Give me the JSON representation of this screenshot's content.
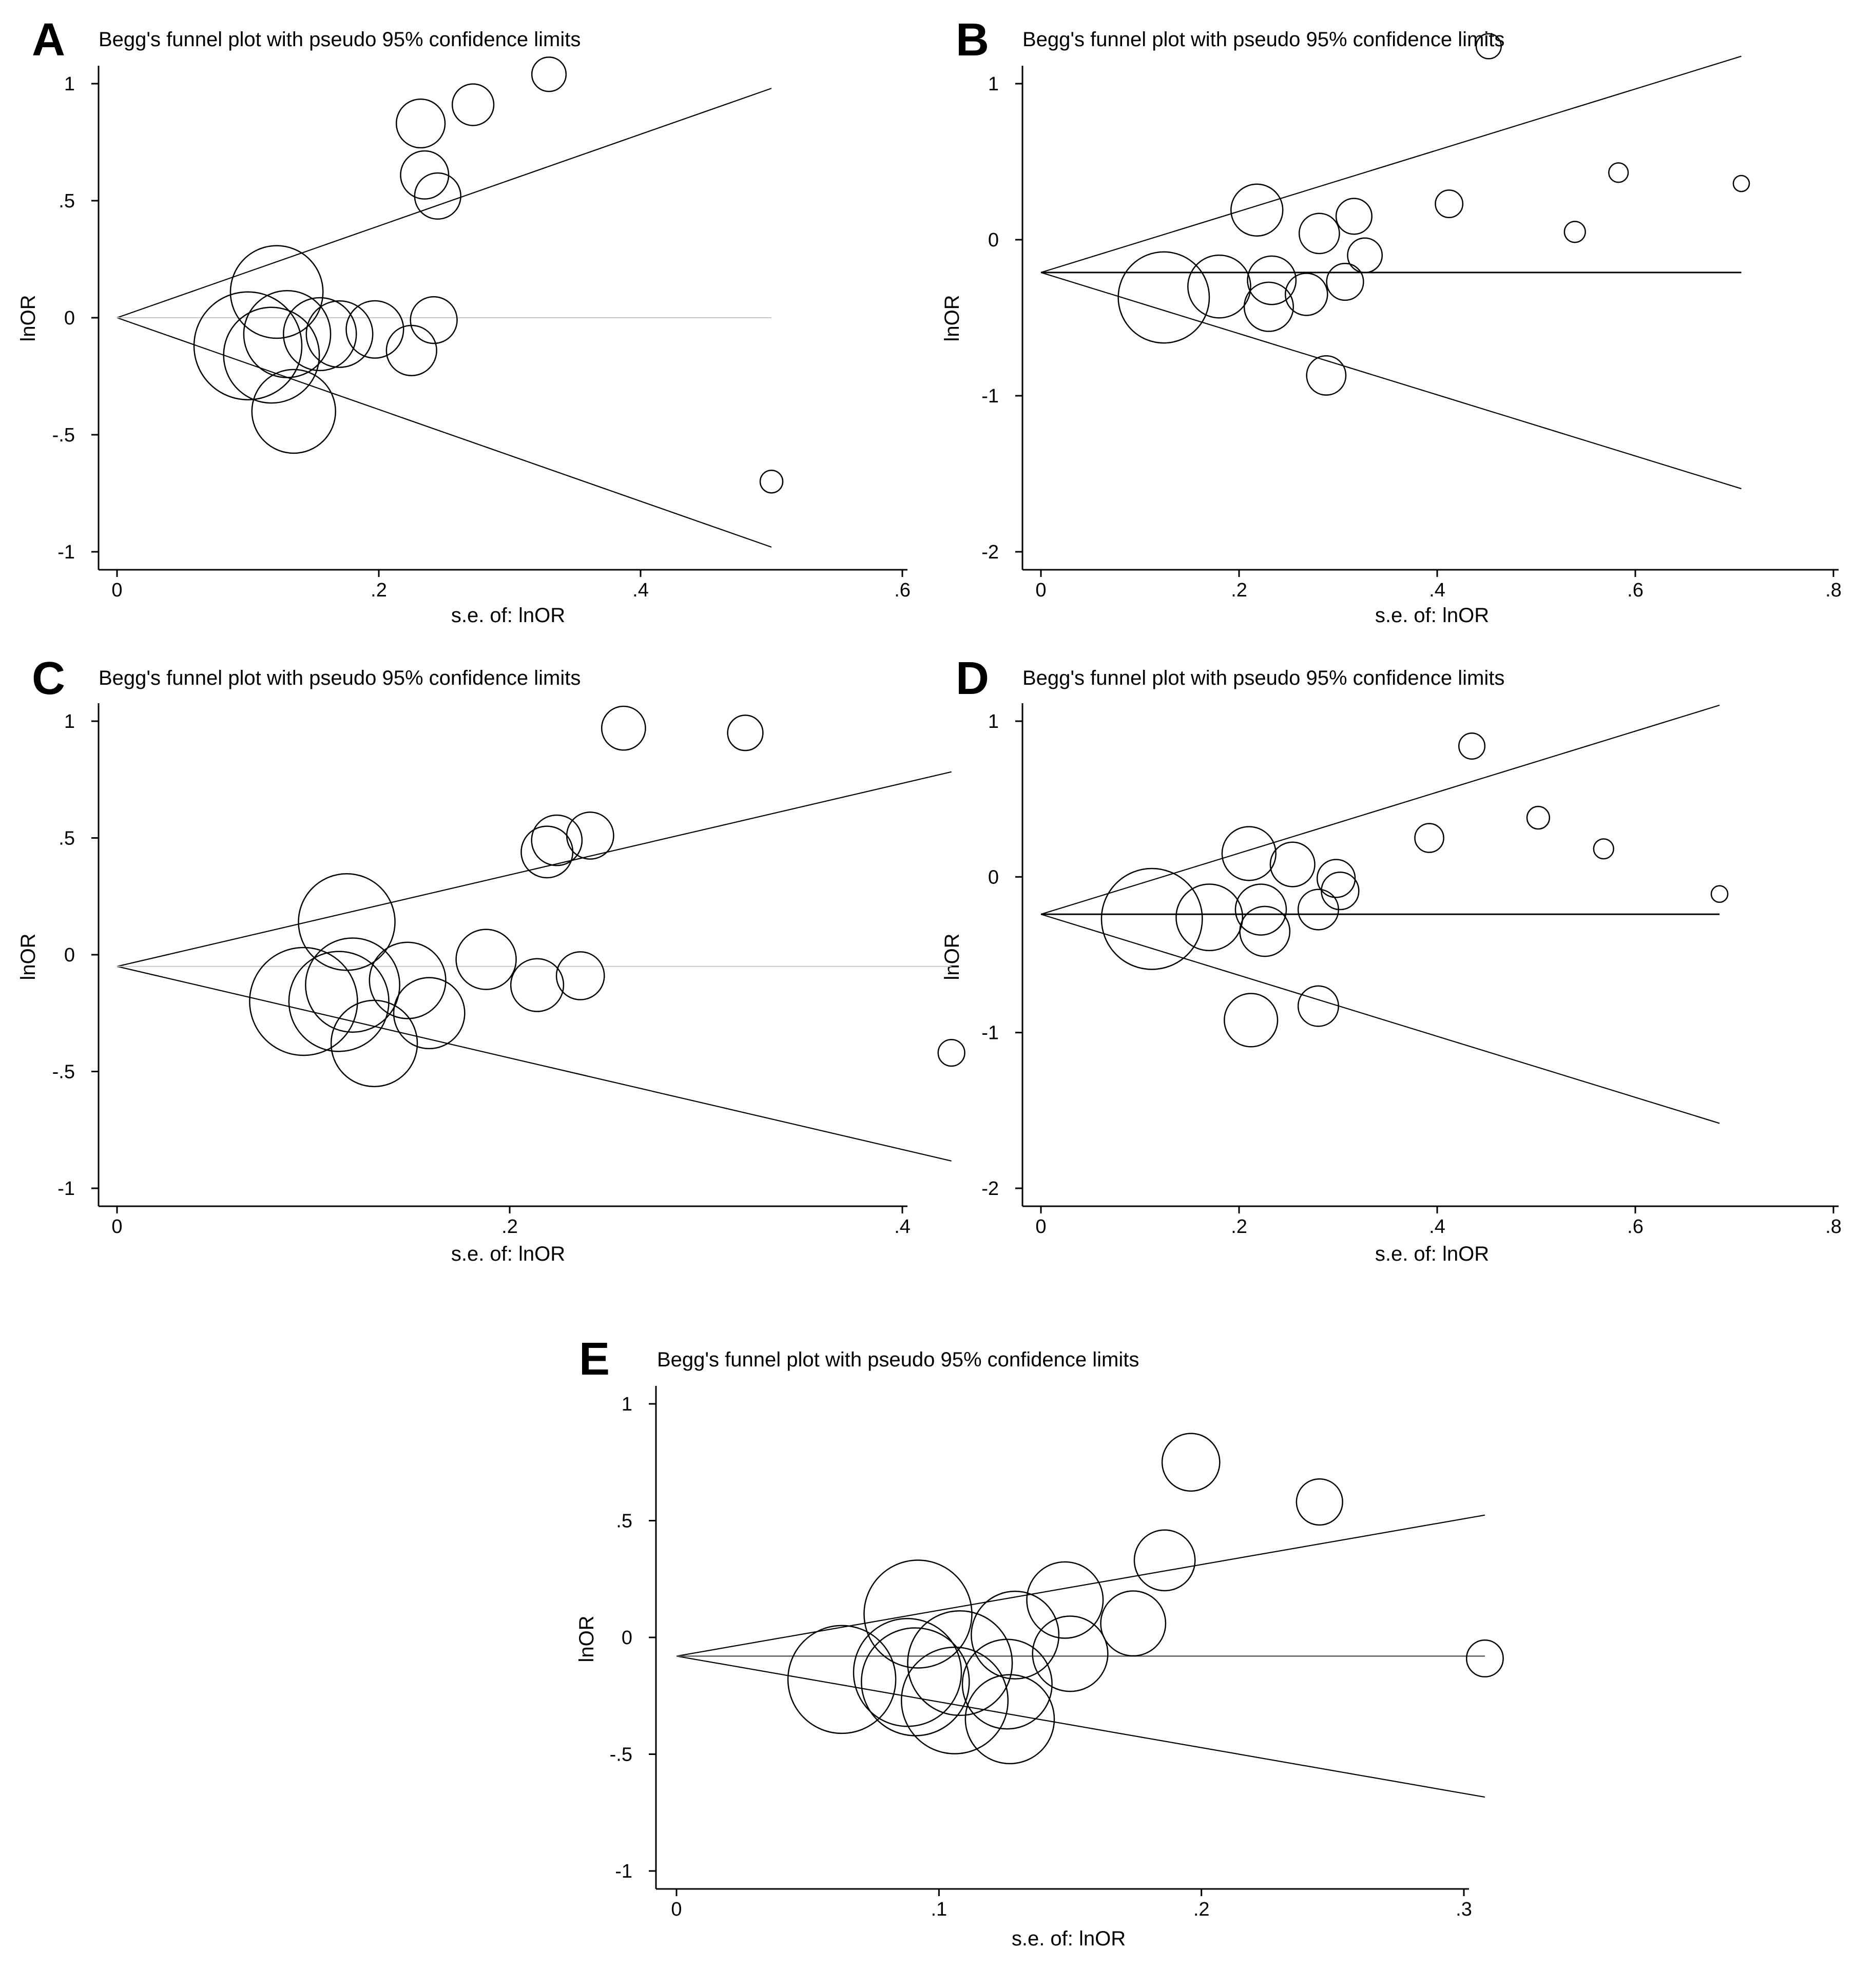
{
  "chart_data": [
    {
      "panel": "A",
      "type": "scatter",
      "title": "Begg's funnel plot with pseudo 95% confidence limits",
      "xlabel": "s.e. of: lnOR",
      "ylabel": "lnOR",
      "xlim": [
        0,
        0.6
      ],
      "ylim": [
        -1,
        1
      ],
      "xticks": [
        {
          "v": 0,
          "label": "0"
        },
        {
          "v": 0.2,
          "label": ".2"
        },
        {
          "v": 0.4,
          "label": ".4"
        },
        {
          "v": 0.6,
          "label": ".6"
        }
      ],
      "yticks": [
        {
          "v": 1,
          "label": "1"
        },
        {
          "v": 0.5,
          "label": ".5"
        },
        {
          "v": 0,
          "label": "0"
        },
        {
          "v": -0.5,
          "label": "-.5"
        },
        {
          "v": -1,
          "label": "-1"
        }
      ],
      "pooled": 0,
      "funnel_xmax": 0.5,
      "center_line": "light",
      "points": [
        {
          "x": 0.33,
          "y": 1.04
        },
        {
          "x": 0.272,
          "y": 0.91
        },
        {
          "x": 0.232,
          "y": 0.83
        },
        {
          "x": 0.235,
          "y": 0.61
        },
        {
          "x": 0.245,
          "y": 0.52
        },
        {
          "x": 0.122,
          "y": 0.11
        },
        {
          "x": 0.1,
          "y": -0.12
        },
        {
          "x": 0.118,
          "y": -0.16
        },
        {
          "x": 0.13,
          "y": -0.07
        },
        {
          "x": 0.155,
          "y": -0.07
        },
        {
          "x": 0.17,
          "y": -0.07
        },
        {
          "x": 0.197,
          "y": -0.05
        },
        {
          "x": 0.242,
          "y": -0.01
        },
        {
          "x": 0.225,
          "y": -0.14
        },
        {
          "x": 0.135,
          "y": -0.4
        },
        {
          "x": 0.5,
          "y": -0.7
        }
      ]
    },
    {
      "panel": "B",
      "type": "scatter",
      "title": "Begg's funnel plot with pseudo 95% confidence limits",
      "xlabel": "s.e. of: lnOR",
      "ylabel": "lnOR",
      "xlim": [
        0,
        0.8
      ],
      "ylim": [
        -2,
        1
      ],
      "xticks": [
        {
          "v": 0,
          "label": "0"
        },
        {
          "v": 0.2,
          "label": ".2"
        },
        {
          "v": 0.4,
          "label": ".4"
        },
        {
          "v": 0.6,
          "label": ".6"
        },
        {
          "v": 0.8,
          "label": ".8"
        }
      ],
      "yticks": [
        {
          "v": 1,
          "label": "1"
        },
        {
          "v": 0,
          "label": "0"
        },
        {
          "v": -1,
          "label": "-1"
        },
        {
          "v": -2,
          "label": "-2"
        }
      ],
      "pooled": -0.21,
      "funnel_xmax": 0.707,
      "center_line": "dark",
      "points": [
        {
          "x": 0.452,
          "y": 1.24
        },
        {
          "x": 0.707,
          "y": 0.36
        },
        {
          "x": 0.583,
          "y": 0.43
        },
        {
          "x": 0.412,
          "y": 0.23
        },
        {
          "x": 0.539,
          "y": 0.05
        },
        {
          "x": 0.218,
          "y": 0.19
        },
        {
          "x": 0.316,
          "y": 0.15
        },
        {
          "x": 0.281,
          "y": 0.04
        },
        {
          "x": 0.327,
          "y": -0.1
        },
        {
          "x": 0.124,
          "y": -0.37
        },
        {
          "x": 0.18,
          "y": -0.3
        },
        {
          "x": 0.233,
          "y": -0.26
        },
        {
          "x": 0.307,
          "y": -0.27
        },
        {
          "x": 0.268,
          "y": -0.35
        },
        {
          "x": 0.23,
          "y": -0.43
        },
        {
          "x": 0.288,
          "y": -0.87
        }
      ]
    },
    {
      "panel": "C",
      "type": "scatter",
      "title": "Begg's funnel plot with pseudo 95% confidence limits",
      "xlabel": "s.e. of: lnOR",
      "ylabel": "lnOR",
      "xlim": [
        0,
        0.4
      ],
      "ylim": [
        -1,
        1
      ],
      "xticks": [
        {
          "v": 0,
          "label": "0"
        },
        {
          "v": 0.2,
          "label": ".2"
        },
        {
          "v": 0.4,
          "label": ".4"
        }
      ],
      "yticks": [
        {
          "v": 1,
          "label": "1"
        },
        {
          "v": 0.5,
          "label": ".5"
        },
        {
          "v": 0,
          "label": "0"
        },
        {
          "v": -0.5,
          "label": "-.5"
        },
        {
          "v": -1,
          "label": "-1"
        }
      ],
      "pooled": -0.05,
      "funnel_xmax": 0.425,
      "center_line": "light",
      "points": [
        {
          "x": 0.258,
          "y": 0.97
        },
        {
          "x": 0.32,
          "y": 0.95
        },
        {
          "x": 0.241,
          "y": 0.51
        },
        {
          "x": 0.224,
          "y": 0.49
        },
        {
          "x": 0.219,
          "y": 0.44
        },
        {
          "x": 0.117,
          "y": 0.14
        },
        {
          "x": 0.188,
          "y": -0.02
        },
        {
          "x": 0.148,
          "y": -0.11
        },
        {
          "x": 0.12,
          "y": -0.13
        },
        {
          "x": 0.095,
          "y": -0.2
        },
        {
          "x": 0.113,
          "y": -0.2
        },
        {
          "x": 0.159,
          "y": -0.25
        },
        {
          "x": 0.131,
          "y": -0.38
        },
        {
          "x": 0.214,
          "y": -0.13
        },
        {
          "x": 0.236,
          "y": -0.09
        },
        {
          "x": 0.425,
          "y": -0.42
        }
      ]
    },
    {
      "panel": "D",
      "type": "scatter",
      "title": "Begg's funnel plot with pseudo 95% confidence limits",
      "xlabel": "s.e. of: lnOR",
      "ylabel": "lnOR",
      "xlim": [
        0,
        0.8
      ],
      "ylim": [
        -2,
        1
      ],
      "xticks": [
        {
          "v": 0,
          "label": "0"
        },
        {
          "v": 0.2,
          "label": ".2"
        },
        {
          "v": 0.4,
          "label": ".4"
        },
        {
          "v": 0.6,
          "label": ".6"
        },
        {
          "v": 0.8,
          "label": ".8"
        }
      ],
      "yticks": [
        {
          "v": 1,
          "label": "1"
        },
        {
          "v": 0,
          "label": "0"
        },
        {
          "v": -1,
          "label": "-1"
        },
        {
          "v": -2,
          "label": "-2"
        }
      ],
      "pooled": -0.24,
      "funnel_xmax": 0.685,
      "center_line": "dark",
      "points": [
        {
          "x": 0.435,
          "y": 0.84
        },
        {
          "x": 0.502,
          "y": 0.38
        },
        {
          "x": 0.392,
          "y": 0.25
        },
        {
          "x": 0.568,
          "y": 0.18
        },
        {
          "x": 0.21,
          "y": 0.15
        },
        {
          "x": 0.254,
          "y": 0.08
        },
        {
          "x": 0.298,
          "y": -0.01
        },
        {
          "x": 0.302,
          "y": -0.09
        },
        {
          "x": 0.685,
          "y": -0.11
        },
        {
          "x": 0.222,
          "y": -0.21
        },
        {
          "x": 0.28,
          "y": -0.21
        },
        {
          "x": 0.112,
          "y": -0.27
        },
        {
          "x": 0.17,
          "y": -0.26
        },
        {
          "x": 0.226,
          "y": -0.35
        },
        {
          "x": 0.28,
          "y": -0.83
        },
        {
          "x": 0.212,
          "y": -0.92
        }
      ]
    },
    {
      "panel": "E",
      "type": "scatter",
      "title": "Begg's funnel plot with pseudo 95% confidence limits",
      "xlabel": "s.e. of: lnOR",
      "ylabel": "lnOR",
      "xlim": [
        0,
        0.3
      ],
      "ylim": [
        -1,
        1
      ],
      "xticks": [
        {
          "v": 0,
          "label": "0"
        },
        {
          "v": 0.1,
          "label": ".1"
        },
        {
          "v": 0.2,
          "label": ".2"
        },
        {
          "v": 0.3,
          "label": ".3"
        }
      ],
      "yticks": [
        {
          "v": 1,
          "label": "1"
        },
        {
          "v": 0.5,
          "label": ".5"
        },
        {
          "v": 0,
          "label": "0"
        },
        {
          "v": -0.5,
          "label": "-.5"
        },
        {
          "v": -1,
          "label": "-1"
        }
      ],
      "pooled": -0.08,
      "funnel_xmax": 0.308,
      "center_line": "medium",
      "points": [
        {
          "x": 0.196,
          "y": 0.75
        },
        {
          "x": 0.245,
          "y": 0.58
        },
        {
          "x": 0.186,
          "y": 0.33
        },
        {
          "x": 0.148,
          "y": 0.16
        },
        {
          "x": 0.092,
          "y": 0.1
        },
        {
          "x": 0.174,
          "y": 0.06
        },
        {
          "x": 0.129,
          "y": 0.01
        },
        {
          "x": 0.15,
          "y": -0.07
        },
        {
          "x": 0.108,
          "y": -0.11
        },
        {
          "x": 0.088,
          "y": -0.15
        },
        {
          "x": 0.063,
          "y": -0.18
        },
        {
          "x": 0.091,
          "y": -0.19
        },
        {
          "x": 0.126,
          "y": -0.2
        },
        {
          "x": 0.106,
          "y": -0.27
        },
        {
          "x": 0.127,
          "y": -0.35
        },
        {
          "x": 0.308,
          "y": -0.09
        }
      ]
    }
  ]
}
